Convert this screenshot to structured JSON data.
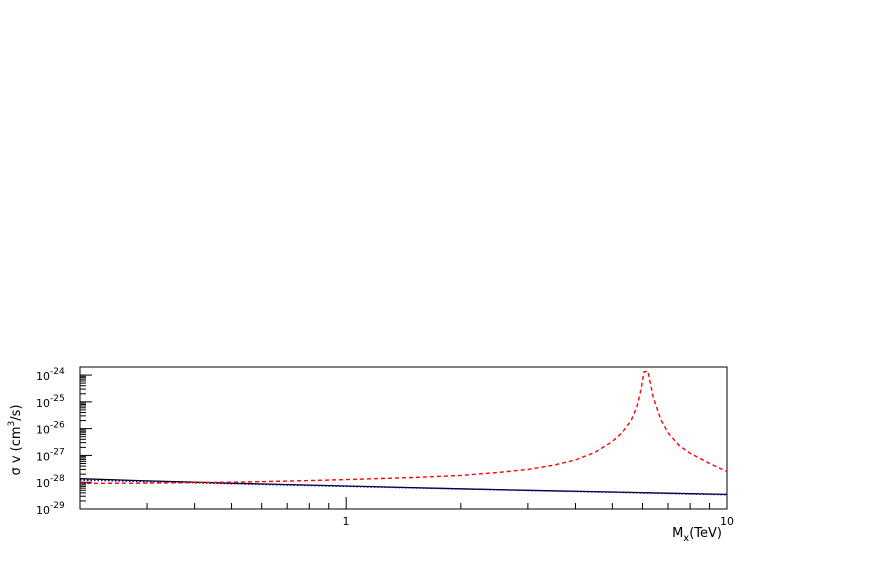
{
  "chart_data": {
    "type": "line",
    "title": "",
    "xlabel": "M_x(TeV)",
    "ylabel": "σ v (cm^3/s)",
    "x_scale": "log",
    "y_scale": "log",
    "xlim": [
      0.2,
      10
    ],
    "ylim": [
      1e-29,
      2e-24
    ],
    "x_tick_labels": [
      "1",
      "10"
    ],
    "y_tick_labels": [
      "10^-29",
      "10^-28",
      "10^-27",
      "10^-26",
      "10^-25",
      "10^-24"
    ],
    "grid": false,
    "legend": "none",
    "series": [
      {
        "style": "solid",
        "color": "#000000",
        "x": [
          0.2,
          0.3,
          0.5,
          1.0,
          2.0,
          3.0,
          5.0,
          7.0,
          10.0
        ],
        "y": [
          1.35e-28,
          1.12e-28,
          9.2e-29,
          7.2e-29,
          5.7e-29,
          5e-29,
          4.3e-29,
          3.9e-29,
          3.5e-29
        ]
      },
      {
        "style": "dotted",
        "color": "#0000cc",
        "x": [
          0.2,
          0.3,
          0.5,
          1.0,
          2.0,
          3.0,
          5.0,
          7.0,
          10.0
        ],
        "y": [
          1.2e-28,
          1.05e-28,
          8.8e-29,
          7e-29,
          5.6e-29,
          4.9e-29,
          4.2e-29,
          3.8e-29,
          3.4e-29
        ]
      },
      {
        "style": "dashed",
        "color": "#ff0000",
        "x": [
          0.2,
          0.3,
          0.5,
          0.7,
          1.0,
          1.5,
          2.0,
          2.5,
          3.0,
          3.5,
          4.0,
          4.5,
          5.0,
          5.3,
          5.6,
          5.8,
          5.95,
          6.05,
          6.2,
          6.4,
          6.7,
          7.0,
          7.5,
          8.0,
          9.0,
          10.0
        ],
        "y": [
          9e-29,
          9.3e-29,
          1e-28,
          1.1e-28,
          1.25e-28,
          1.5e-28,
          1.8e-28,
          2.3e-28,
          3e-28,
          4.3e-28,
          6.8e-28,
          1.3e-27,
          3.3e-27,
          7e-27,
          2e-26,
          6.5e-26,
          3e-25,
          1.3e-24,
          1.4e-24,
          1.5e-25,
          2.2e-26,
          7e-27,
          2.3e-27,
          1.2e-27,
          5e-28,
          2.5e-28
        ]
      }
    ]
  }
}
